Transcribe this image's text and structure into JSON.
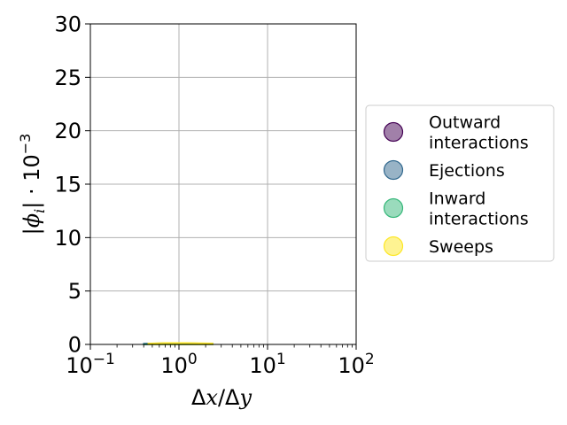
{
  "chart_data": {
    "type": "area",
    "xscale": "log",
    "xlim": [
      0.1,
      100
    ],
    "ylim": [
      0,
      30
    ],
    "grid": true,
    "legend_placement": "center-left outside right",
    "xlabel": {
      "prefix": "Δ",
      "x": "x",
      "sep": "/Δ",
      "y": "y"
    },
    "ylabel": {
      "bar1": "|",
      "phi": "ϕ",
      "sub": "i",
      "bar2": "|",
      "dot": " · 10",
      "exp": "−3"
    },
    "x_ticks": [
      {
        "value": 0.1,
        "base": "10",
        "exp": "−1"
      },
      {
        "value": 1,
        "base": "10",
        "exp": "0"
      },
      {
        "value": 10,
        "base": "10",
        "exp": "1"
      },
      {
        "value": 100,
        "base": "10",
        "exp": "2"
      }
    ],
    "y_ticks": [
      {
        "value": 0,
        "label": "0"
      },
      {
        "value": 5,
        "label": "5"
      },
      {
        "value": 10,
        "label": "10"
      },
      {
        "value": 15,
        "label": "15"
      },
      {
        "value": 20,
        "label": "20"
      },
      {
        "value": 25,
        "label": "25"
      },
      {
        "value": 30,
        "label": "30"
      }
    ],
    "series": [
      {
        "name": "Outward\ninteractions",
        "color": "#440154",
        "x": [
          0.4,
          0.7,
          1.2,
          2.4
        ],
        "values": [
          0.02,
          0.03,
          0.03,
          0.02
        ]
      },
      {
        "name": "Ejections",
        "color": "#31688e",
        "x": [
          0.4,
          0.7,
          1.2,
          2.4
        ],
        "values": [
          0.08,
          0.12,
          0.12,
          0.08
        ]
      },
      {
        "name": "Inward\ninteractions",
        "color": "#35b779",
        "x": [
          0.4,
          0.7,
          1.2,
          2.4
        ],
        "values": [
          0.02,
          0.03,
          0.03,
          0.02
        ]
      },
      {
        "name": "Sweeps",
        "color": "#fde725",
        "x": [
          0.45,
          0.7,
          1.2,
          2.4
        ],
        "values": [
          0.1,
          0.15,
          0.15,
          0.1
        ]
      }
    ]
  }
}
